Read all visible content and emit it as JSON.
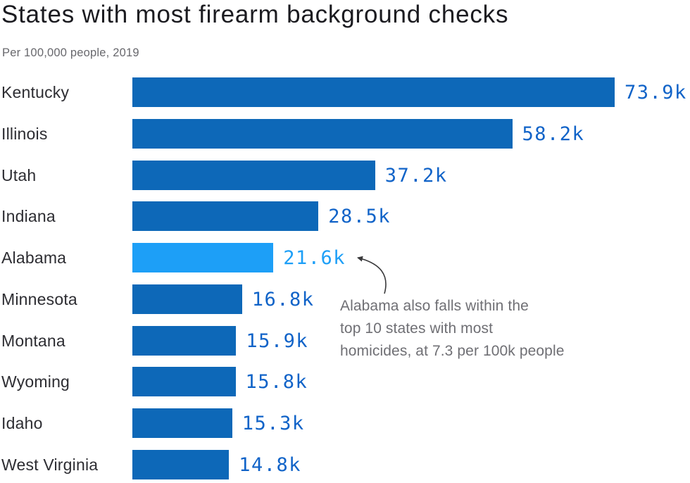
{
  "chart_data": {
    "type": "bar",
    "orientation": "horizontal",
    "title": "States with most firearm background checks",
    "subtitle": "Per 100,000 people, 2019",
    "xlabel": "",
    "ylabel": "",
    "axis_visible": false,
    "grid": false,
    "legend": "none",
    "categories": [
      "Kentucky",
      "Illinois",
      "Utah",
      "Indiana",
      "Alabama",
      "Minnesota",
      "Montana",
      "Wyoming",
      "Idaho",
      "West Virginia"
    ],
    "values": [
      73900,
      58200,
      37200,
      28500,
      21600,
      16800,
      15900,
      15800,
      15300,
      14800
    ],
    "value_labels": [
      "73.9k",
      "58.2k",
      "37.2k",
      "28.5k",
      "21.6k",
      "16.8k",
      "15.9k",
      "15.8k",
      "15.3k",
      "14.8k"
    ],
    "value_axis_max": 73900,
    "highlight_index": 4,
    "bar_color": "#0d68b8",
    "highlight_color": "#1d9ff7",
    "value_color": "#1063c8",
    "highlight_value_color": "#1d9ff7"
  },
  "annotation": {
    "lines": [
      "Alabama also falls within the",
      "top 10 states with most",
      "homicides, at 7.3 per 100k people"
    ],
    "arrow_points_to": "Alabama bar",
    "arrow_color": "#39393b"
  }
}
